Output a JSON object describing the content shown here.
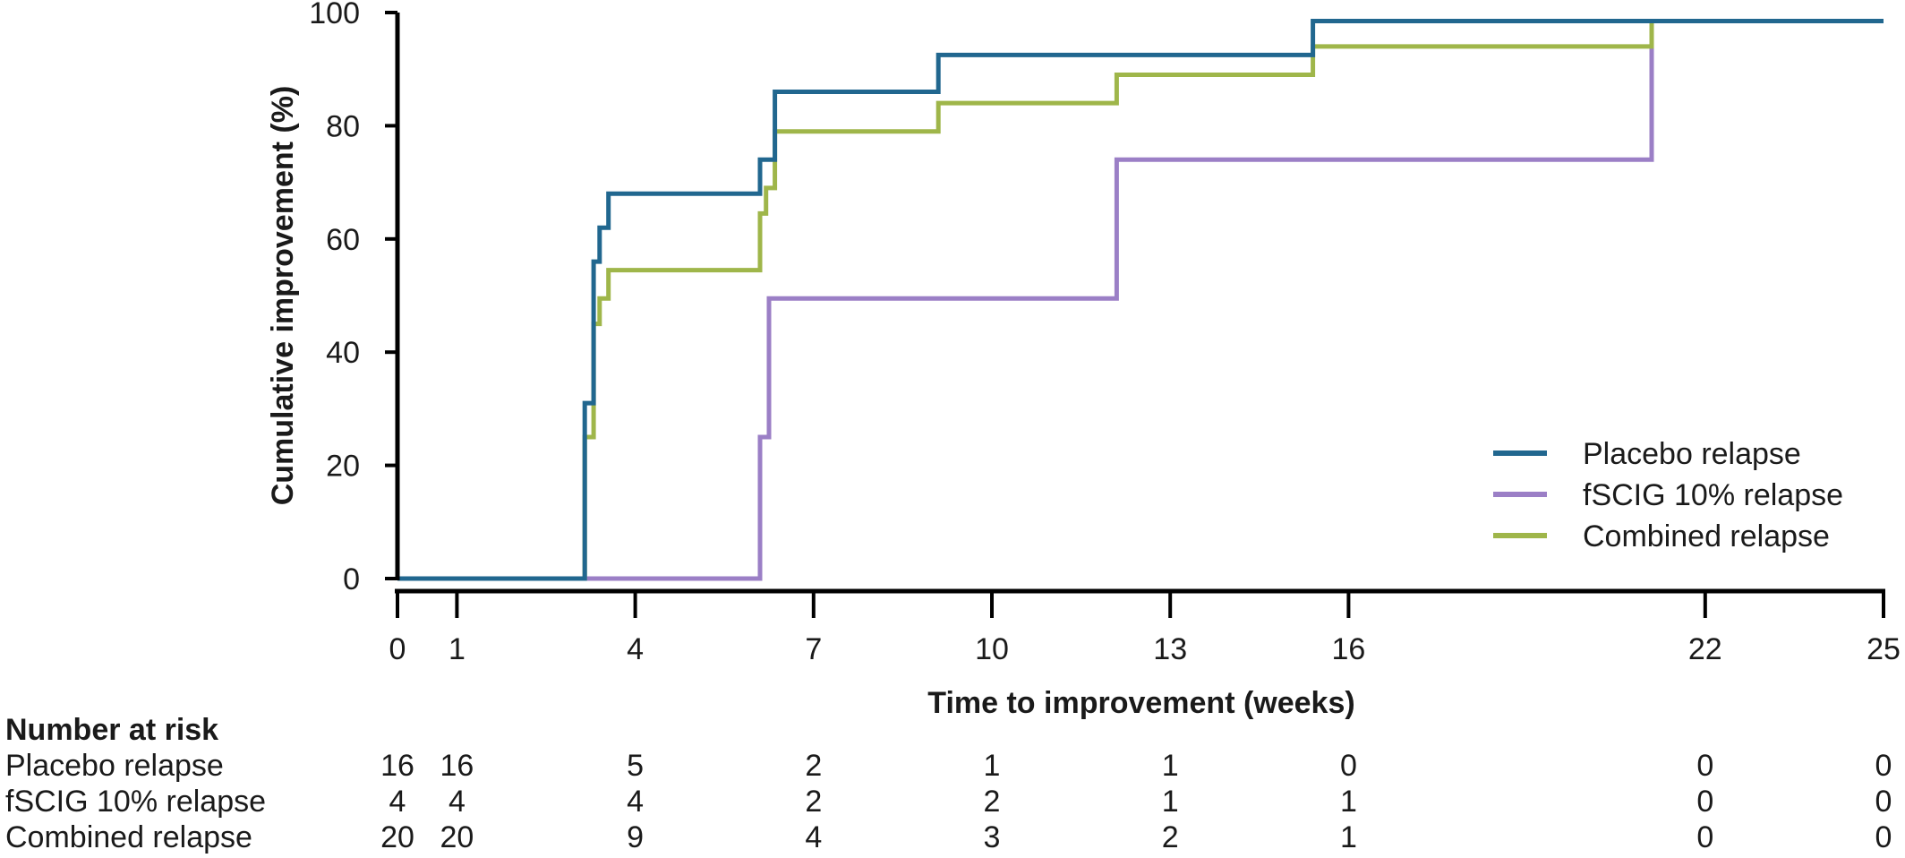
{
  "chart_data": {
    "type": "line",
    "step": true,
    "xlabel": "Time to improvement (weeks)",
    "ylabel": "Cumulative improvement (%)",
    "xlim": [
      0,
      25
    ],
    "ylim": [
      0,
      100
    ],
    "xticks": [
      0,
      1,
      4,
      7,
      10,
      13,
      16,
      22,
      25
    ],
    "yticks": [
      0,
      20,
      40,
      60,
      80,
      100
    ],
    "grid": false,
    "legend_position": "bottom-right",
    "series": [
      {
        "name": "Placebo relapse",
        "color": "#21678f",
        "points": [
          [
            0,
            0
          ],
          [
            3.15,
            0
          ],
          [
            3.15,
            31
          ],
          [
            3.3,
            31
          ],
          [
            3.3,
            56
          ],
          [
            3.4,
            56
          ],
          [
            3.4,
            62
          ],
          [
            3.55,
            62
          ],
          [
            3.55,
            68
          ],
          [
            6.1,
            68
          ],
          [
            6.1,
            74
          ],
          [
            6.35,
            74
          ],
          [
            6.35,
            86
          ],
          [
            9.1,
            86
          ],
          [
            9.1,
            92.5
          ],
          [
            15.4,
            92.5
          ],
          [
            15.4,
            98.5
          ],
          [
            25,
            98.5
          ]
        ]
      },
      {
        "name": "fSCIG 10% relapse",
        "color": "#9b7fc6",
        "points": [
          [
            0,
            0
          ],
          [
            6.1,
            0
          ],
          [
            6.1,
            25
          ],
          [
            6.25,
            25
          ],
          [
            6.25,
            49.5
          ],
          [
            12.1,
            49.5
          ],
          [
            12.1,
            74
          ],
          [
            21.1,
            74
          ],
          [
            21.1,
            98.5
          ],
          [
            25,
            98.5
          ]
        ]
      },
      {
        "name": "Combined relapse",
        "color": "#9fb64a",
        "points": [
          [
            0,
            0
          ],
          [
            3.15,
            0
          ],
          [
            3.15,
            25
          ],
          [
            3.3,
            25
          ],
          [
            3.3,
            45
          ],
          [
            3.4,
            45
          ],
          [
            3.4,
            49.5
          ],
          [
            3.55,
            49.5
          ],
          [
            3.55,
            54.5
          ],
          [
            6.1,
            54.5
          ],
          [
            6.1,
            64.5
          ],
          [
            6.2,
            64.5
          ],
          [
            6.2,
            69
          ],
          [
            6.35,
            69
          ],
          [
            6.35,
            79
          ],
          [
            9.1,
            79
          ],
          [
            9.1,
            84
          ],
          [
            12.1,
            84
          ],
          [
            12.1,
            89
          ],
          [
            15.4,
            89
          ],
          [
            15.4,
            94
          ],
          [
            21.1,
            94
          ],
          [
            21.1,
            98.5
          ],
          [
            25,
            98.5
          ]
        ]
      }
    ]
  },
  "risk_table": {
    "heading": "Number at risk",
    "times": [
      0,
      1,
      4,
      7,
      10,
      13,
      16,
      22,
      25
    ],
    "rows": [
      {
        "label": "Placebo relapse",
        "values": [
          "16",
          "16",
          "5",
          "2",
          "1",
          "1",
          "0",
          "0",
          "0"
        ]
      },
      {
        "label": "fSCIG 10% relapse",
        "values": [
          "4",
          "4",
          "4",
          "2",
          "2",
          "1",
          "1",
          "0",
          "0"
        ]
      },
      {
        "label": "Combined relapse",
        "values": [
          "20",
          "20",
          "9",
          "4",
          "3",
          "2",
          "1",
          "0",
          "0"
        ]
      }
    ]
  }
}
